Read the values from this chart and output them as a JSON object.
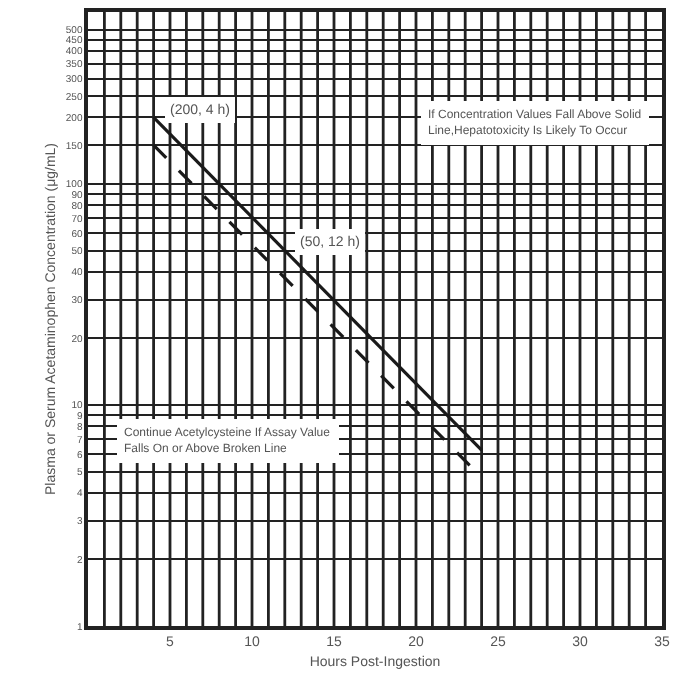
{
  "chart_data": {
    "type": "line",
    "xlabel": "Hours Post-Ingestion",
    "ylabel": "Plasma or Serum Acetaminophen Concentration (μg/mL)",
    "log": "y",
    "grid": true,
    "marker": "none",
    "xlim": [
      0,
      35
    ],
    "xticks": [
      5,
      10,
      15,
      20,
      25,
      30,
      35
    ],
    "ylim": [
      1,
      600
    ],
    "yticks": [
      1,
      2,
      3,
      4,
      5,
      6,
      7,
      8,
      9,
      10,
      20,
      30,
      40,
      50,
      60,
      70,
      80,
      90,
      100,
      150,
      200,
      250,
      300,
      350,
      400,
      450,
      500
    ],
    "x": [
      4,
      24
    ],
    "series": [
      {
        "values": [
          200,
          6.25
        ],
        "color": "#1a1a1a",
        "line_style": "solid"
      },
      {
        "values": [
          150,
          4.7
        ],
        "color": "#1a1a1a",
        "line_style": "dashed"
      }
    ],
    "annotations": [
      {
        "text": "(200, 4 h)",
        "x": 4,
        "y": 200
      },
      {
        "text": "(50, 12 h)",
        "x": 12,
        "y": 50
      },
      "If Concentration Values Fall Above Solid Line,Hepatotoxicity Is Likely To Occur",
      "Continue Acetylcysteine If Assay Value Falls On or Above Broken Line"
    ]
  }
}
